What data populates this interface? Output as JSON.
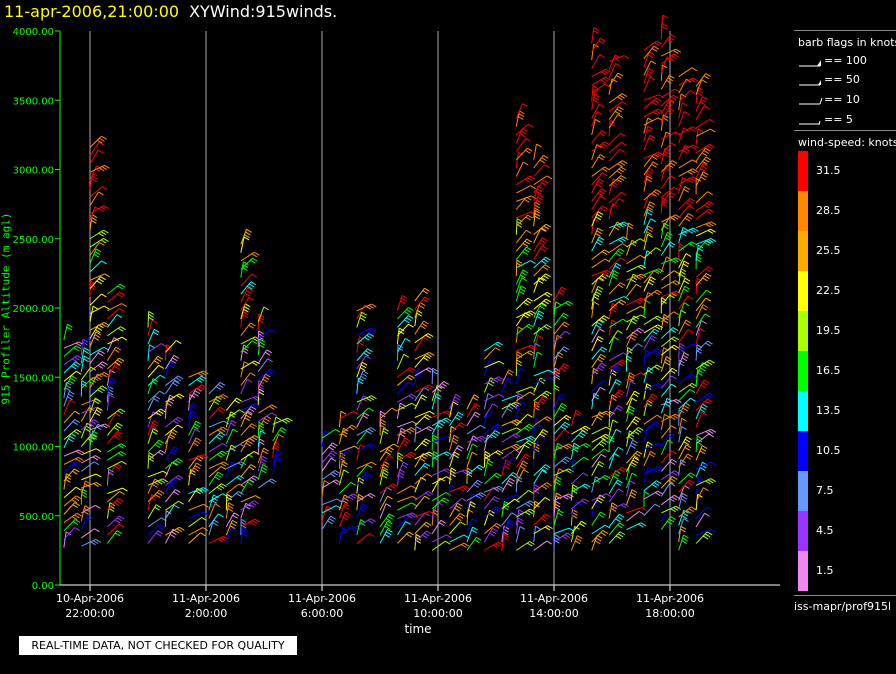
{
  "header": {
    "timestamp": "11-apr-2006,21:00:00",
    "plot_name": "XYWind:915winds."
  },
  "legend": {
    "barb_title": "barb flags in knots",
    "barbs": [
      {
        "label": "== 100"
      },
      {
        "label": "== 50"
      },
      {
        "label": "== 10"
      },
      {
        "label": "== 5"
      }
    ],
    "speed_title": "wind-speed: knots",
    "scale": [
      {
        "label": "31.5",
        "color": "#ff0000"
      },
      {
        "label": "28.5",
        "color": "#ff8800"
      },
      {
        "label": "25.5",
        "color": "#ffaa00"
      },
      {
        "label": "22.5",
        "color": "#ffff00"
      },
      {
        "label": "19.5",
        "color": "#aaff00"
      },
      {
        "label": "16.5",
        "color": "#00ff00"
      },
      {
        "label": "13.5",
        "color": "#00ffff"
      },
      {
        "label": "10.5",
        "color": "#0000ff"
      },
      {
        "label": "7.5",
        "color": "#6699ff"
      },
      {
        "label": "4.5",
        "color": "#9933ff"
      },
      {
        "label": "1.5",
        "color": "#ee88ee"
      }
    ]
  },
  "source": "iss-mapr/prof915l",
  "disclaimer": "REAL-TIME DATA, NOT CHECKED FOR QUALITY",
  "chart_data": {
    "type": "wind-barb time-height",
    "title": "XYWind:915winds.",
    "xlabel": "time",
    "ylabel": "915 Profiler Altitude (m agl)",
    "ylim": [
      0,
      4000
    ],
    "yticks": [
      "0.00",
      "500.00",
      "1000.00",
      "1500.00",
      "2000.00",
      "2500.00",
      "3000.00",
      "3500.00",
      "4000.00"
    ],
    "xticks": [
      {
        "date": "10-Apr-2006",
        "time": "22:00:00"
      },
      {
        "date": "11-Apr-2006",
        "time": "2:00:00"
      },
      {
        "date": "11-Apr-2006",
        "time": "6:00:00"
      },
      {
        "date": "11-Apr-2006",
        "time": "10:00:00"
      },
      {
        "date": "11-Apr-2006",
        "time": "14:00:00"
      },
      {
        "date": "11-Apr-2006",
        "time": "18:00:00"
      }
    ],
    "grid": "vertical lines at x ticks",
    "series": [
      {
        "hour": -0.9,
        "bottom": 270,
        "top": 1800
      },
      {
        "hour": -0.3,
        "bottom": 280,
        "top": 1750
      },
      {
        "hour": 0.0,
        "bottom": 1000,
        "top": 3200
      },
      {
        "hour": 0.6,
        "bottom": 300,
        "top": 2100
      },
      {
        "hour": 2.0,
        "bottom": 300,
        "top": 1900
      },
      {
        "hour": 2.6,
        "bottom": 300,
        "top": 1700
      },
      {
        "hour": 3.4,
        "bottom": 300,
        "top": 1500
      },
      {
        "hour": 4.1,
        "bottom": 300,
        "top": 1400
      },
      {
        "hour": 4.7,
        "bottom": 300,
        "top": 1300
      },
      {
        "hour": 5.2,
        "bottom": 300,
        "top": 2500
      },
      {
        "hour": 5.8,
        "bottom": 700,
        "top": 1900
      },
      {
        "hour": 6.3,
        "bottom": 800,
        "top": 1200
      },
      {
        "hour": 8.0,
        "bottom": 400,
        "top": 1100
      },
      {
        "hour": 8.6,
        "bottom": 300,
        "top": 1200
      },
      {
        "hour": 9.2,
        "bottom": 300,
        "top": 2000
      },
      {
        "hour": 10.0,
        "bottom": 300,
        "top": 1200
      },
      {
        "hour": 10.6,
        "bottom": 300,
        "top": 2000
      },
      {
        "hour": 11.2,
        "bottom": 250,
        "top": 2100
      },
      {
        "hour": 11.8,
        "bottom": 250,
        "top": 1500
      },
      {
        "hour": 12.4,
        "bottom": 250,
        "top": 1300
      },
      {
        "hour": 13.0,
        "bottom": 250,
        "top": 1300
      },
      {
        "hour": 13.6,
        "bottom": 250,
        "top": 1700
      },
      {
        "hour": 14.2,
        "bottom": 250,
        "top": 1500
      },
      {
        "hour": 14.7,
        "bottom": 250,
        "top": 3400
      },
      {
        "hour": 15.3,
        "bottom": 250,
        "top": 3100
      },
      {
        "hour": 16.0,
        "bottom": 250,
        "top": 2100
      },
      {
        "hour": 16.6,
        "bottom": 250,
        "top": 1200
      },
      {
        "hour": 17.3,
        "bottom": 250,
        "top": 3950
      },
      {
        "hour": 17.9,
        "bottom": 300,
        "top": 3800
      },
      {
        "hour": 18.5,
        "bottom": 400,
        "top": 2500
      },
      {
        "hour": 19.1,
        "bottom": 500,
        "top": 3900
      },
      {
        "hour": 19.7,
        "bottom": 400,
        "top": 4000
      },
      {
        "hour": 20.3,
        "bottom": 250,
        "top": 3700
      },
      {
        "hour": 20.9,
        "bottom": 300,
        "top": 3600
      }
    ]
  }
}
